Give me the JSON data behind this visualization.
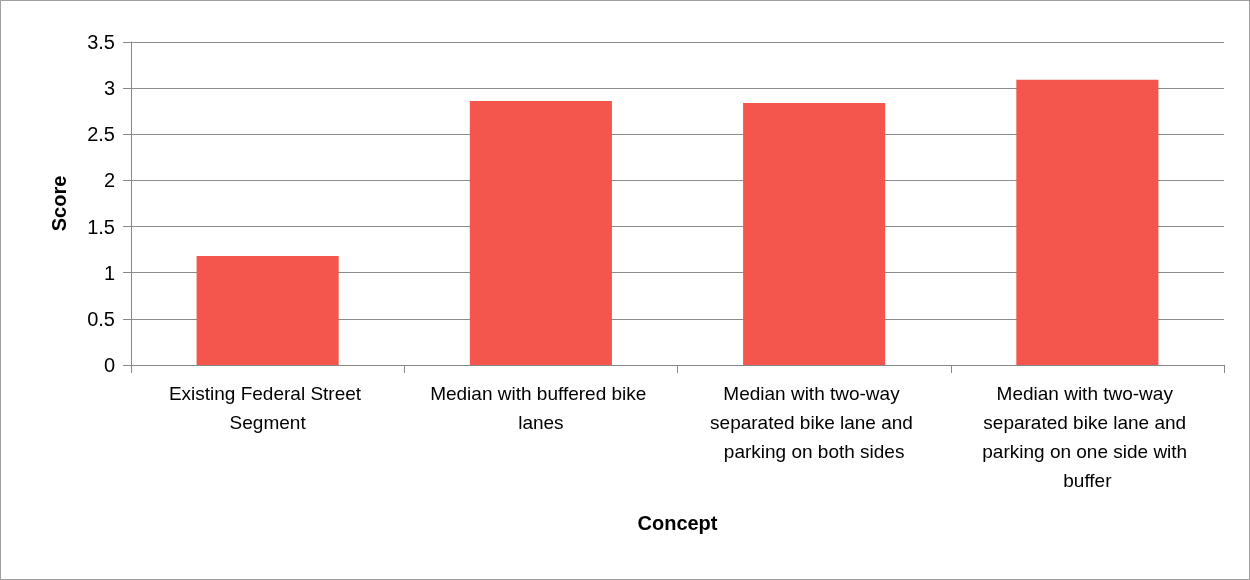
{
  "chart_data": {
    "type": "bar",
    "xlabel": "Concept",
    "ylabel": "Score",
    "categories": [
      "Existing Federal Street Segment",
      "Median with buffered bike lanes",
      "Median with two-way separated bike lane and parking on both sides",
      "Median with two-way separated bike lane and parking on one side with buffer"
    ],
    "values": [
      1.18,
      2.86,
      2.84,
      3.09
    ],
    "color": "#f4554c",
    "ylim": [
      0,
      3.5
    ],
    "yticks": [
      0,
      0.5,
      1,
      1.5,
      2,
      2.5,
      3,
      3.5
    ],
    "grid": "y"
  }
}
